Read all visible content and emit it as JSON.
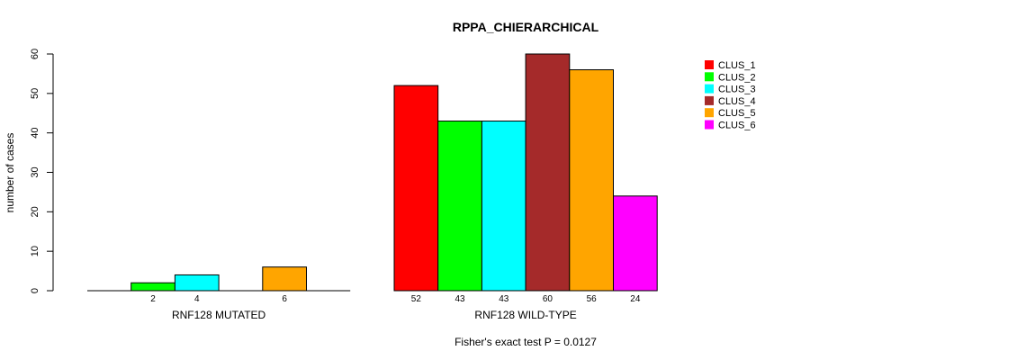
{
  "chart_data": {
    "type": "bar",
    "title": "RPPA_CHIERARCHICAL",
    "ylabel": "number of cases",
    "ylim": [
      0,
      60
    ],
    "yticks": [
      0,
      10,
      20,
      30,
      40,
      50,
      60
    ],
    "footnote": "Fisher's exact test P = 0.0127",
    "legend_position": "top-right",
    "series": [
      {
        "name": "CLUS_1",
        "color": "#ff0000"
      },
      {
        "name": "CLUS_2",
        "color": "#00ff00"
      },
      {
        "name": "CLUS_3",
        "color": "#00ffff"
      },
      {
        "name": "CLUS_4",
        "color": "#a52a2a"
      },
      {
        "name": "CLUS_5",
        "color": "#ffa500"
      },
      {
        "name": "CLUS_6",
        "color": "#ff00ff"
      }
    ],
    "groups": [
      {
        "label": "RNF128 MUTATED",
        "values": [
          0,
          2,
          4,
          0,
          6,
          0
        ],
        "value_labels": [
          "",
          "2",
          "4",
          "",
          "6",
          ""
        ]
      },
      {
        "label": "RNF128 WILD-TYPE",
        "values": [
          52,
          43,
          43,
          60,
          56,
          24
        ],
        "value_labels": [
          "52",
          "43",
          "43",
          "60",
          "56",
          "24"
        ]
      }
    ]
  }
}
